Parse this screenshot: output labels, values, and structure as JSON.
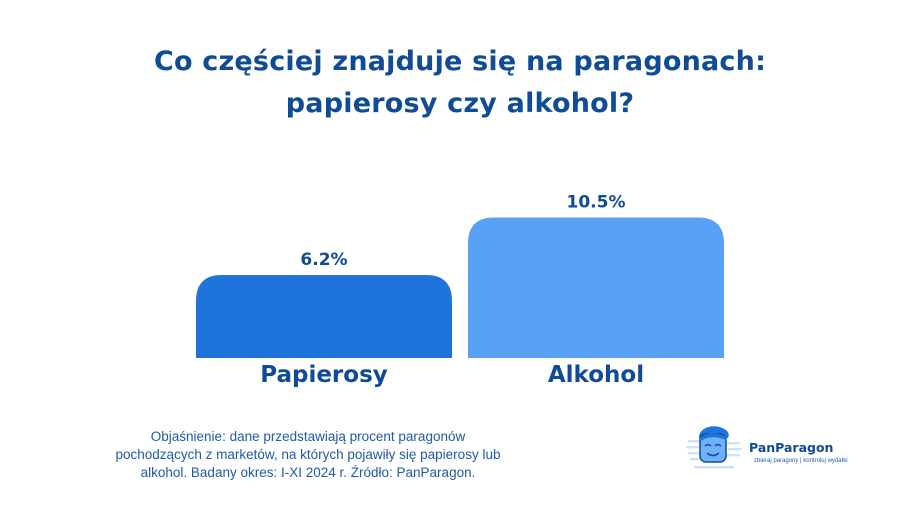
{
  "title_lines": [
    "Co częściej znajduje się na paragonach:",
    "papierosy czy alkohol?"
  ],
  "chart_data": {
    "type": "bar",
    "categories": [
      "Papierosy",
      "Alkohol"
    ],
    "values": [
      6.2,
      10.5
    ],
    "value_labels": [
      "6.2%",
      "10.5%"
    ],
    "unit": "%",
    "colors": [
      "#1f74dc",
      "#58a1f7"
    ],
    "grid": false,
    "title": "Co częściej znajduje się na paragonach: papierosy czy alkohol?"
  },
  "footnote_lines": [
    "Objaśnienie: dane przedstawiają procent paragonów",
    "pochodzących z marketów, na których pojawiły się papierosy lub",
    "alkohol. Badany okres: I-XI 2024 r. Źródło: PanParagon."
  ],
  "logo": {
    "name": "PanParagon",
    "tagline": "zbieraj paragony | kontroluj wydatki",
    "icon": "panparagon-mascot-icon"
  },
  "colors": {
    "title": "#0f4b96",
    "text": "#1f5aa8"
  }
}
